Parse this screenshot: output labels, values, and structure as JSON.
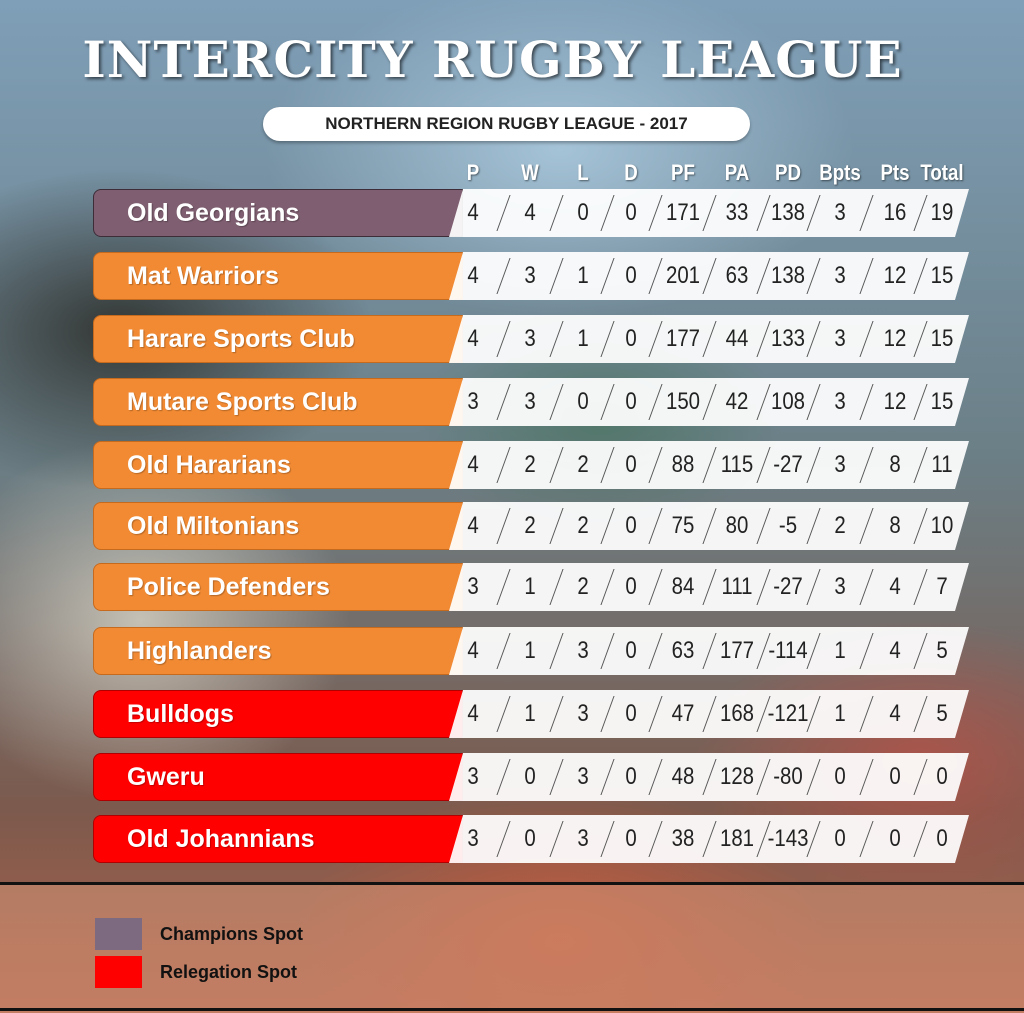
{
  "title": "INTERCITY RUGBY LEAGUE",
  "subtitle": "NORTHERN REGION RUGBY LEAGUE - 2017",
  "columns": [
    "P",
    "W",
    "L",
    "D",
    "PF",
    "PA",
    "PD",
    "Bpts",
    "Pts",
    "Total"
  ],
  "rows": [
    {
      "team": "Old Georgians",
      "status": "champion",
      "values": [
        "4",
        "4",
        "0",
        "0",
        "171",
        "33",
        "138",
        "3",
        "16",
        "19"
      ]
    },
    {
      "team": "Mat Warriors",
      "status": "normal",
      "values": [
        "4",
        "3",
        "1",
        "0",
        "201",
        "63",
        "138",
        "3",
        "12",
        "15"
      ]
    },
    {
      "team": "Harare Sports Club",
      "status": "normal",
      "values": [
        "4",
        "3",
        "1",
        "0",
        "177",
        "44",
        "133",
        "3",
        "12",
        "15"
      ]
    },
    {
      "team": "Mutare Sports Club",
      "status": "normal",
      "values": [
        "3",
        "3",
        "0",
        "0",
        "150",
        "42",
        "108",
        "3",
        "12",
        "15"
      ]
    },
    {
      "team": "Old Hararians",
      "status": "normal",
      "values": [
        "4",
        "2",
        "2",
        "0",
        "88",
        "115",
        "-27",
        "3",
        "8",
        "11"
      ]
    },
    {
      "team": "Old Miltonians",
      "status": "normal",
      "values": [
        "4",
        "2",
        "2",
        "0",
        "75",
        "80",
        "-5",
        "2",
        "8",
        "10"
      ]
    },
    {
      "team": "Police Defenders",
      "status": "normal",
      "values": [
        "3",
        "1",
        "2",
        "0",
        "84",
        "111",
        "-27",
        "3",
        "4",
        "7"
      ]
    },
    {
      "team": "Highlanders",
      "status": "normal",
      "values": [
        "4",
        "1",
        "3",
        "0",
        "63",
        "177",
        "-114",
        "1",
        "4",
        "5"
      ]
    },
    {
      "team": "Bulldogs",
      "status": "relegation",
      "values": [
        "4",
        "1",
        "3",
        "0",
        "47",
        "168",
        "-121",
        "1",
        "4",
        "5"
      ]
    },
    {
      "team": "Gweru",
      "status": "relegation",
      "values": [
        "3",
        "0",
        "3",
        "0",
        "48",
        "128",
        "-80",
        "0",
        "0",
        "0"
      ]
    },
    {
      "team": "Old Johannians",
      "status": "relegation",
      "values": [
        "3",
        "0",
        "3",
        "0",
        "38",
        "181",
        "-143",
        "0",
        "0",
        "0"
      ]
    }
  ],
  "legend": [
    {
      "label": "Champions Spot",
      "color": "#7e6a80"
    },
    {
      "label": "Relegation Spot",
      "color": "#ff0000"
    }
  ],
  "colors": {
    "champion": "#7e5e70",
    "normal": "#f18a33",
    "relegation": "#ff0000"
  }
}
